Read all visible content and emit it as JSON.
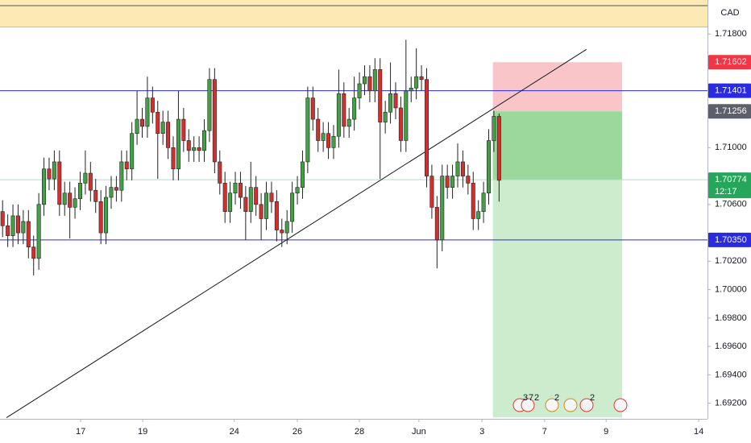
{
  "chart_data": {
    "type": "candlestick",
    "currency": "CAD",
    "up_color": "#43a047",
    "down_color": "#d32f2f",
    "xlim": [
      -0.5,
      136.3
    ],
    "ylim": [
      1.6909,
      1.7204
    ],
    "grid": false,
    "xticks": [
      {
        "value": 15.1,
        "label": "17"
      },
      {
        "value": 27.1,
        "label": "19"
      },
      {
        "value": 44.8,
        "label": "24"
      },
      {
        "value": 57.0,
        "label": "26"
      },
      {
        "value": 69.0,
        "label": "28"
      },
      {
        "value": 80.5,
        "label": "Jun"
      },
      {
        "value": 92.7,
        "label": "3"
      },
      {
        "value": 104.8,
        "label": "7"
      },
      {
        "value": 116.7,
        "label": "9"
      },
      {
        "value": 134.6,
        "label": "14"
      }
    ],
    "yticks": [
      {
        "value": 1.718,
        "label": "1.71800"
      },
      {
        "value": 1.71,
        "label": "1.71000"
      },
      {
        "value": 1.706,
        "label": "1.70600"
      },
      {
        "value": 1.702,
        "label": "1.70200"
      },
      {
        "value": 1.7,
        "label": "1.70000"
      },
      {
        "value": 1.698,
        "label": "1.69800"
      },
      {
        "value": 1.696,
        "label": "1.69600"
      },
      {
        "value": 1.694,
        "label": "1.69400"
      },
      {
        "value": 1.692,
        "label": "1.69200"
      }
    ],
    "open": [
      1.7055,
      1.7045,
      1.7038,
      1.7052,
      1.704,
      1.7048,
      1.703,
      1.7022,
      1.706,
      1.7085,
      1.7078,
      1.709,
      1.706,
      1.7068,
      1.7058,
      1.7064,
      1.7075,
      1.7082,
      1.707,
      1.7062,
      1.704,
      1.7065,
      1.7072,
      1.707,
      1.709,
      1.7085,
      1.711,
      1.712,
      1.7115,
      1.7135,
      1.7125,
      1.711,
      1.7118,
      1.71,
      1.7085,
      1.712,
      1.7105,
      1.7098,
      1.71,
      1.7098,
      1.7112,
      1.7148,
      1.709,
      1.7075,
      1.7055,
      1.7068,
      1.7075,
      1.7065,
      1.7055,
      1.7072,
      1.706,
      1.705,
      1.7068,
      1.7062,
      1.7042,
      1.704,
      1.7048,
      1.7068,
      1.7072,
      1.709,
      1.7135,
      1.712,
      1.7105,
      1.711,
      1.71,
      1.7108,
      1.7138,
      1.7115,
      1.712,
      1.7135,
      1.7145,
      1.715,
      1.714,
      1.7155,
      1.7118,
      1.7125,
      1.7138,
      1.7128,
      1.7105,
      1.714,
      1.7142,
      1.715,
      1.7148,
      1.708,
      1.7058,
      1.7035,
      1.708,
      1.7072,
      1.708,
      1.709,
      1.708,
      1.7075,
      1.705,
      1.7055,
      1.7068,
      1.7105,
      1.7122
    ],
    "high": [
      1.7063,
      1.7053,
      1.706,
      1.706,
      1.7056,
      1.7056,
      1.7038,
      1.7068,
      1.7093,
      1.7093,
      1.7098,
      1.7098,
      1.7076,
      1.7076,
      1.7072,
      1.7083,
      1.7098,
      1.709,
      1.7078,
      1.707,
      1.7073,
      1.708,
      1.708,
      1.7098,
      1.7098,
      1.7118,
      1.714,
      1.7128,
      1.715,
      1.7143,
      1.7133,
      1.7126,
      1.7126,
      1.7108,
      1.714,
      1.7128,
      1.7113,
      1.7108,
      1.7108,
      1.712,
      1.7156,
      1.7156,
      1.7098,
      1.7083,
      1.7076,
      1.7083,
      1.7083,
      1.7073,
      1.709,
      1.708,
      1.7068,
      1.7076,
      1.7076,
      1.707,
      1.705,
      1.7056,
      1.7076,
      1.708,
      1.7098,
      1.7143,
      1.7143,
      1.7128,
      1.7118,
      1.7118,
      1.7116,
      1.7155,
      1.7146,
      1.7128,
      1.715,
      1.7153,
      1.7158,
      1.7158,
      1.7163,
      1.7163,
      1.7133,
      1.716,
      1.7146,
      1.7136,
      1.7176,
      1.715,
      1.717,
      1.7158,
      1.7156,
      1.7088,
      1.7066,
      1.7088,
      1.7088,
      1.7088,
      1.7103,
      1.7098,
      1.7088,
      1.7083,
      1.7063,
      1.7076,
      1.7113,
      1.7126,
      1.7124
    ],
    "low": [
      1.7037,
      1.703,
      1.703,
      1.7032,
      1.7032,
      1.7022,
      1.701,
      1.7014,
      1.7052,
      1.707,
      1.707,
      1.7052,
      1.7052,
      1.7036,
      1.705,
      1.7056,
      1.7067,
      1.7062,
      1.7054,
      1.7032,
      1.7032,
      1.7057,
      1.7062,
      1.7062,
      1.7077,
      1.7077,
      1.7102,
      1.7107,
      1.7107,
      1.7117,
      1.7078,
      1.7102,
      1.7092,
      1.7077,
      1.7077,
      1.7097,
      1.709,
      1.709,
      1.709,
      1.709,
      1.7104,
      1.7082,
      1.7067,
      1.7047,
      1.7047,
      1.706,
      1.7057,
      1.7035,
      1.7047,
      1.7052,
      1.7035,
      1.7042,
      1.7054,
      1.7034,
      1.703,
      1.7032,
      1.704,
      1.706,
      1.7064,
      1.7082,
      1.7112,
      1.7097,
      1.7097,
      1.7092,
      1.7092,
      1.71,
      1.7107,
      1.7107,
      1.7112,
      1.7127,
      1.7137,
      1.7132,
      1.7132,
      1.7078,
      1.711,
      1.7117,
      1.712,
      1.7097,
      1.7097,
      1.7132,
      1.7134,
      1.714,
      1.7072,
      1.705,
      1.7015,
      1.7027,
      1.7064,
      1.7064,
      1.7072,
      1.7072,
      1.7067,
      1.7042,
      1.7042,
      1.7047,
      1.706,
      1.7097,
      1.7062
    ],
    "close": [
      1.7045,
      1.7038,
      1.7052,
      1.704,
      1.7048,
      1.703,
      1.7022,
      1.706,
      1.7085,
      1.7078,
      1.709,
      1.706,
      1.7068,
      1.7058,
      1.7064,
      1.7075,
      1.7082,
      1.707,
      1.7062,
      1.704,
      1.7065,
      1.7072,
      1.707,
      1.709,
      1.7085,
      1.711,
      1.712,
      1.7115,
      1.7135,
      1.7125,
      1.711,
      1.7118,
      1.71,
      1.7085,
      1.712,
      1.7105,
      1.7098,
      1.71,
      1.7098,
      1.7112,
      1.7148,
      1.709,
      1.7075,
      1.7055,
      1.7068,
      1.7075,
      1.7065,
      1.7055,
      1.7072,
      1.706,
      1.705,
      1.7068,
      1.7062,
      1.7042,
      1.704,
      1.7048,
      1.7068,
      1.7072,
      1.709,
      1.7135,
      1.712,
      1.7105,
      1.711,
      1.71,
      1.7108,
      1.7138,
      1.7115,
      1.712,
      1.7135,
      1.7145,
      1.715,
      1.714,
      1.7155,
      1.7118,
      1.7125,
      1.7138,
      1.7128,
      1.7105,
      1.714,
      1.7142,
      1.715,
      1.7148,
      1.708,
      1.7058,
      1.7035,
      1.708,
      1.7072,
      1.708,
      1.709,
      1.708,
      1.7075,
      1.705,
      1.7055,
      1.7068,
      1.7105,
      1.7122,
      1.7077
    ],
    "zone": {
      "from": 1.7185,
      "to": 1.7204,
      "line": 1.72,
      "color": "#fde9b4"
    },
    "hlines": [
      {
        "value": 1.71401,
        "color": "#2a2ae0"
      },
      {
        "value": 1.7035,
        "color": "#2a2ae0"
      },
      {
        "value": 1.70774,
        "color": "#b7dcc0"
      }
    ],
    "trendline": {
      "x": [
        0.75,
        112.9
      ],
      "y": [
        1.69098,
        1.71692
      ]
    },
    "position": {
      "x": [
        94.8,
        119.8
      ],
      "stop": 1.71602,
      "entry": 1.71256,
      "price": 1.70774,
      "target": 1.691
    },
    "price_labels": [
      {
        "value": 1.71602,
        "label": "1.71602",
        "color": "#f23645"
      },
      {
        "value": 1.71401,
        "label": "1.71401",
        "color": "#2a2ae0"
      },
      {
        "value": 1.71256,
        "label": "1.71256",
        "color": "#5d606b"
      },
      {
        "value": 1.70774,
        "label": "1.70774",
        "color": "#26a65b"
      },
      {
        "value": 1.7035,
        "label": "1.70350",
        "color": "#2a2ae0"
      }
    ],
    "countdown": "12:17",
    "events": [
      "3",
      "7",
      "2",
      "2",
      "2"
    ]
  }
}
